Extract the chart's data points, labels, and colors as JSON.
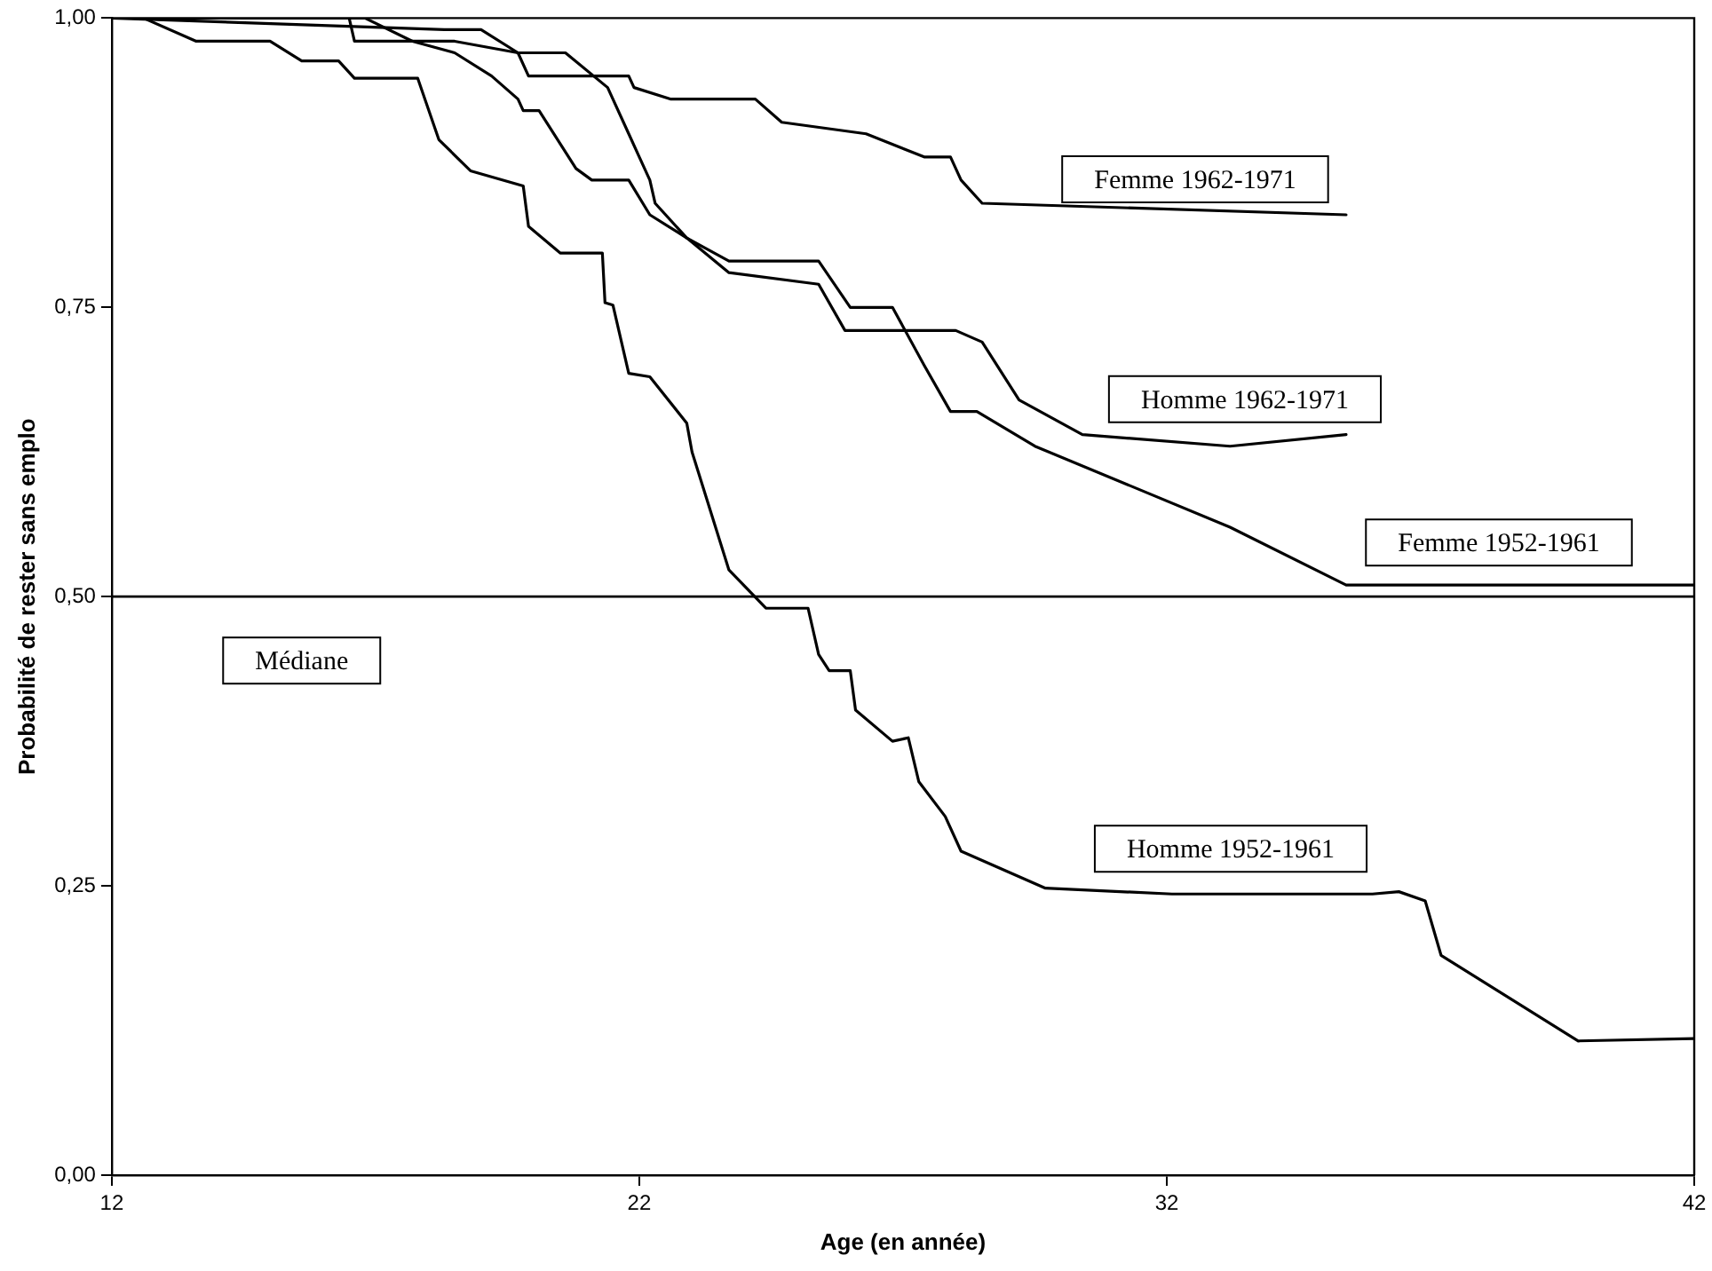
{
  "chart_data": {
    "type": "line",
    "xlabel": "Age (en année)",
    "ylabel": "Probabilité de rester sans emplo",
    "xlim": [
      12,
      42
    ],
    "xticks": [
      12,
      22,
      32,
      42
    ],
    "ylim": [
      0,
      1
    ],
    "yticks": [
      {
        "value": 0,
        "label": "0,00"
      },
      {
        "value": 0.25,
        "label": "0,25"
      },
      {
        "value": 0.5,
        "label": "0,50"
      },
      {
        "value": 0.75,
        "label": "0,75"
      },
      {
        "value": 1,
        "label": "1,00"
      }
    ],
    "grid": false,
    "legend": false,
    "marker": "none",
    "line_style": "solid",
    "ref_lines": [
      {
        "axis": "y",
        "value": 0.5,
        "label": "Médiane",
        "color": "#000000"
      }
    ],
    "series": [
      {
        "name": "Femme 1962-1971",
        "color": "#000000",
        "x": [
          12,
          16.5,
          16.6,
          18.2,
          18.5,
          19.7,
          19.9,
          21.8,
          21.9,
          22.6,
          24.2,
          24.7,
          26.3,
          27.4,
          27.5,
          27.9,
          28.1,
          28.5,
          35.4
        ],
        "values": [
          1,
          1,
          0.98,
          0.98,
          0.98,
          0.97,
          0.95,
          0.95,
          0.94,
          0.93,
          0.93,
          0.91,
          0.9,
          0.88,
          0.88,
          0.88,
          0.86,
          0.84,
          0.83
        ]
      },
      {
        "name": "Homme 1962-1971",
        "color": "#000000",
        "x": [
          12,
          18.3,
          19.0,
          19.7,
          20.4,
          20.6,
          21.4,
          21.8,
          22.0,
          22.2,
          22.3,
          22.9,
          23.7,
          25.4,
          25.9,
          28.0,
          28.5,
          29.2,
          30.4,
          33.2,
          35.4
        ],
        "values": [
          1,
          0.99,
          0.99,
          0.97,
          0.97,
          0.97,
          0.94,
          0.9,
          0.88,
          0.86,
          0.84,
          0.81,
          0.78,
          0.77,
          0.73,
          0.73,
          0.72,
          0.67,
          0.64,
          0.63,
          0.64
        ]
      },
      {
        "name": "Femme 1952-1961",
        "color": "#000000",
        "x": [
          12,
          16.8,
          17.7,
          18.5,
          19.2,
          19.7,
          19.8,
          20.1,
          20.8,
          21.1,
          21.8,
          22.2,
          22.9,
          23.7,
          25.4,
          26.0,
          26.8,
          27.4,
          27.9,
          28.4,
          29.5,
          33.2,
          35.4,
          42
        ],
        "values": [
          1,
          1,
          0.98,
          0.97,
          0.95,
          0.93,
          0.92,
          0.92,
          0.87,
          0.86,
          0.86,
          0.83,
          0.81,
          0.79,
          0.79,
          0.75,
          0.75,
          0.7,
          0.66,
          0.66,
          0.63,
          0.56,
          0.51,
          0.51
        ]
      },
      {
        "name": "Homme 1952-1961",
        "color": "#000000",
        "x": [
          12,
          12.6,
          13.6,
          15.0,
          15.6,
          16.3,
          16.6,
          17.6,
          17.8,
          18.2,
          18.8,
          19.8,
          19.9,
          20.5,
          21.3,
          21.35,
          21.5,
          21.8,
          22.2,
          22.9,
          23.0,
          23.7,
          24.4,
          25.2,
          25.4,
          25.6,
          26.0,
          26.1,
          26.8,
          27.1,
          27.3,
          27.8,
          28.1,
          29.7,
          32.1,
          35.9,
          36.4,
          36.9,
          37.2,
          38.5,
          39.8,
          42
        ],
        "values": [
          1,
          1,
          0.98,
          0.98,
          0.963,
          0.963,
          0.948,
          0.948,
          0.948,
          0.895,
          0.868,
          0.855,
          0.82,
          0.797,
          0.797,
          0.754,
          0.752,
          0.693,
          0.69,
          0.65,
          0.625,
          0.523,
          0.49,
          0.49,
          0.45,
          0.436,
          0.436,
          0.402,
          0.375,
          0.378,
          0.34,
          0.31,
          0.28,
          0.248,
          0.243,
          0.243,
          0.245,
          0.237,
          0.19,
          0.153,
          0.116,
          0.118
        ]
      }
    ]
  }
}
